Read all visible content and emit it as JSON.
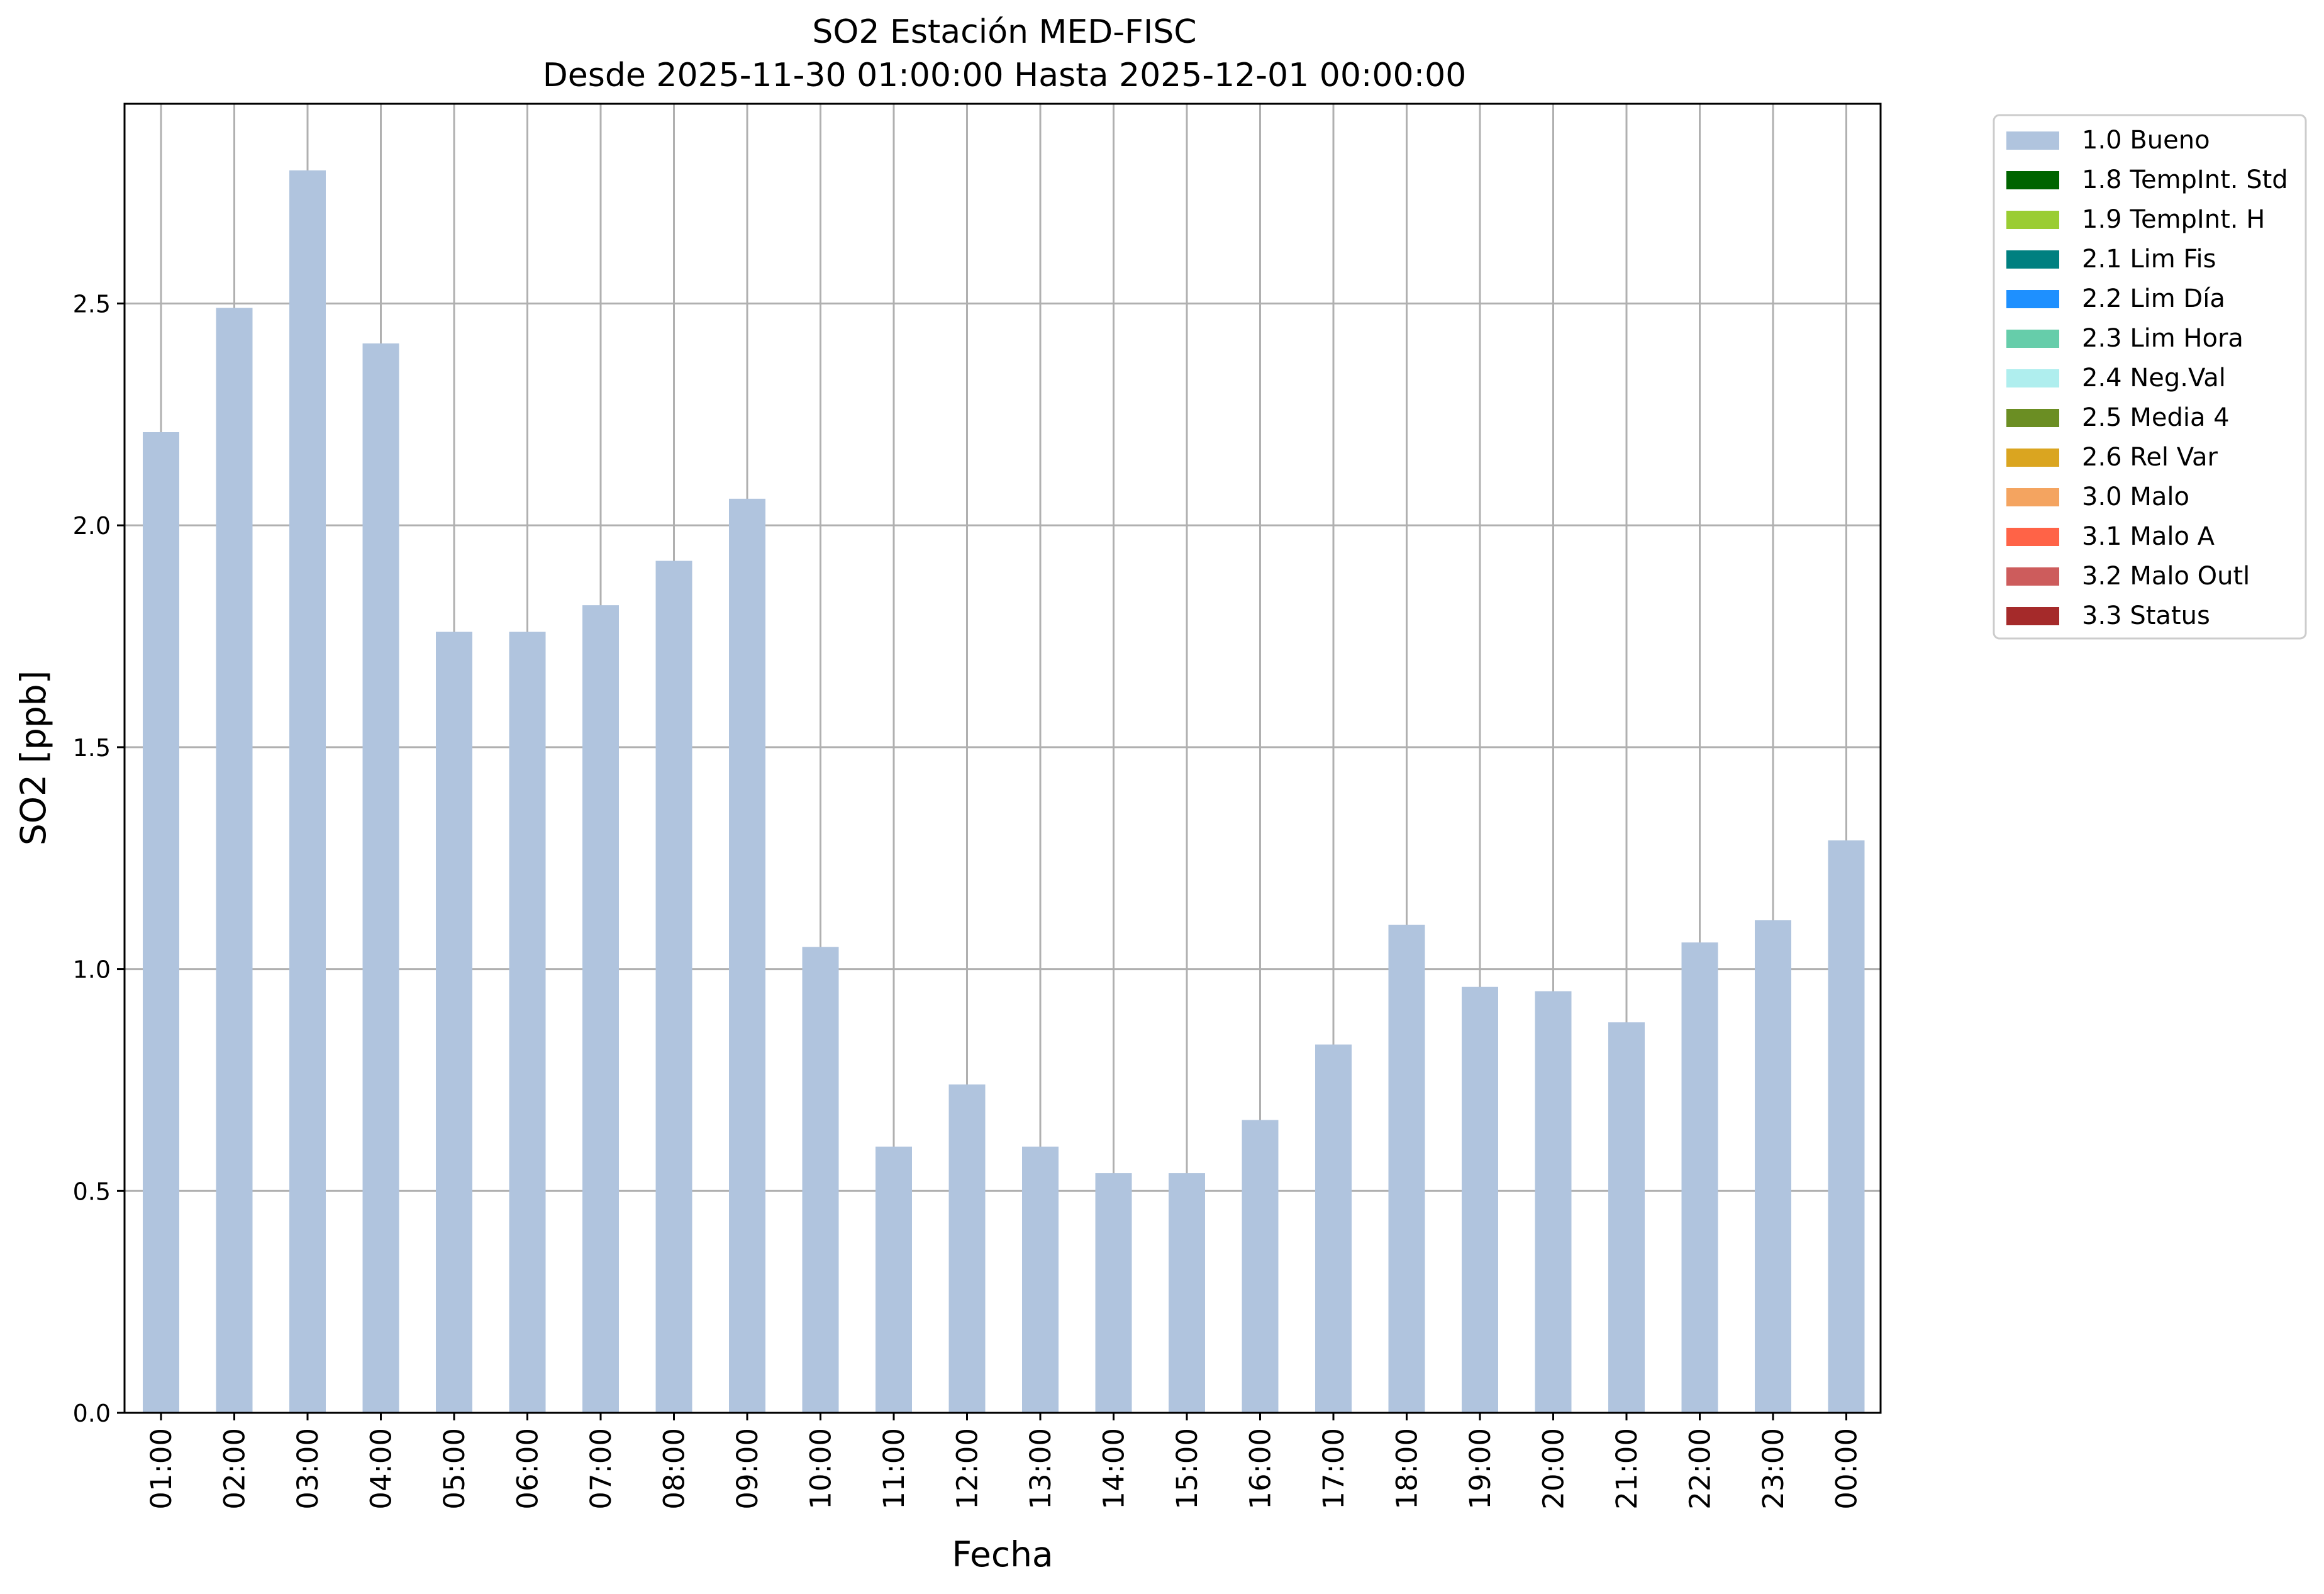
{
  "chart_data": {
    "type": "bar",
    "title": "SO2 Estación MED-FISC",
    "subtitle": "Desde 2025-11-30 01:00:00 Hasta 2025-12-01 00:00:00",
    "xlabel": "Fecha",
    "ylabel": "SO2 [ppb]",
    "ylim": [
      0,
      2.95
    ],
    "yticks": [
      "0.0",
      "0.5",
      "1.0",
      "1.5",
      "2.0",
      "2.5"
    ],
    "grid": true,
    "legend_position": "outside top-right",
    "categories": [
      "01:00",
      "02:00",
      "03:00",
      "04:00",
      "05:00",
      "06:00",
      "07:00",
      "08:00",
      "09:00",
      "10:00",
      "11:00",
      "12:00",
      "13:00",
      "14:00",
      "15:00",
      "16:00",
      "17:00",
      "18:00",
      "19:00",
      "20:00",
      "21:00",
      "22:00",
      "23:00",
      "00:00"
    ],
    "series": [
      {
        "name": "1.0 Bueno",
        "color": "#b0c4de",
        "values": [
          2.21,
          2.49,
          2.8,
          2.41,
          1.76,
          1.76,
          1.82,
          1.92,
          2.06,
          1.05,
          0.6,
          0.74,
          0.6,
          0.54,
          0.54,
          0.66,
          0.83,
          1.1,
          0.96,
          0.95,
          0.88,
          1.06,
          1.11,
          1.29
        ]
      }
    ],
    "legend": [
      {
        "label": "1.0 Bueno",
        "color": "#b0c4de"
      },
      {
        "label": "1.8 TempInt. Std",
        "color": "#006400"
      },
      {
        "label": "1.9 TempInt. H",
        "color": "#9acd32"
      },
      {
        "label": "2.1 Lim Fis",
        "color": "#008080"
      },
      {
        "label": "2.2 Lim Día",
        "color": "#1e90ff"
      },
      {
        "label": "2.3 Lim Hora",
        "color": "#66cdaa"
      },
      {
        "label": "2.4 Neg.Val",
        "color": "#afeeee"
      },
      {
        "label": "2.5 Media 4",
        "color": "#6b8e23"
      },
      {
        "label": "2.6 Rel Var",
        "color": "#daa520"
      },
      {
        "label": "3.0 Malo",
        "color": "#f4a460"
      },
      {
        "label": "3.1 Malo A",
        "color": "#ff6347"
      },
      {
        "label": "3.2 Malo Outl",
        "color": "#cd5c5c"
      },
      {
        "label": "3.3 Status",
        "color": "#a52a2a"
      }
    ]
  }
}
